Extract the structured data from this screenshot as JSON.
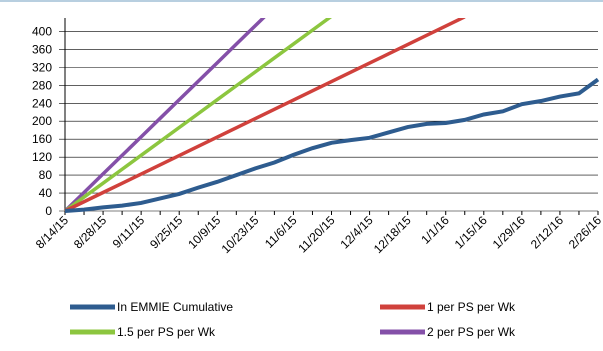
{
  "chart_data": {
    "type": "line",
    "categories": [
      "8/14/15",
      null,
      "8/28/15",
      null,
      "9/11/15",
      null,
      "9/25/15",
      null,
      "10/9/15",
      null,
      "10/23/15",
      null,
      "11/6/15",
      null,
      "11/20/15",
      null,
      "12/4/15",
      null,
      "12/18/15",
      null,
      "1/1/16",
      null,
      "1/15/16",
      null,
      "1/29/16",
      null,
      "2/12/16",
      null,
      "2/26/16"
    ],
    "series": [
      {
        "name": "In EMMIE Cumulative",
        "color": "#2e5c8f",
        "values": [
          0,
          3,
          8,
          12,
          18,
          28,
          38,
          52,
          65,
          80,
          95,
          108,
          125,
          140,
          152,
          158,
          163,
          175,
          187,
          194,
          196,
          203,
          215,
          222,
          238,
          245,
          255,
          262,
          293
        ]
      },
      {
        "name": "1 per PS per Wk",
        "color": "#d0413c",
        "values": [
          0,
          20.6,
          41.2,
          61.8,
          82.4,
          103,
          123.6,
          144.2,
          164.8,
          185.4,
          206,
          226.6,
          247.2,
          267.8,
          288.4,
          309,
          329.6,
          350.2,
          370.8,
          391.4,
          412,
          432.6,
          null,
          null,
          null,
          null,
          null,
          null,
          null
        ]
      },
      {
        "name": "1.5 per PS per Wk",
        "color": "#8cc63f",
        "values": [
          0,
          31,
          62,
          93,
          124,
          155,
          186,
          217,
          248,
          279,
          310,
          341,
          372,
          403,
          434,
          null,
          null,
          null,
          null,
          null,
          null,
          null,
          null,
          null,
          null,
          null,
          null,
          null,
          null
        ]
      },
      {
        "name": "2 per PS per Wk",
        "color": "#8450a8",
        "values": [
          0,
          41.3,
          82.6,
          123.9,
          165.2,
          206.5,
          247.8,
          289.1,
          330.4,
          371.7,
          413,
          454.3,
          null,
          null,
          null,
          null,
          null,
          null,
          null,
          null,
          null,
          null,
          null,
          null,
          null,
          null,
          null,
          null,
          null
        ]
      }
    ],
    "ylim": [
      0,
      430
    ],
    "yticks": [
      0,
      40,
      80,
      120,
      160,
      200,
      240,
      280,
      320,
      360,
      400
    ],
    "grid": true
  }
}
